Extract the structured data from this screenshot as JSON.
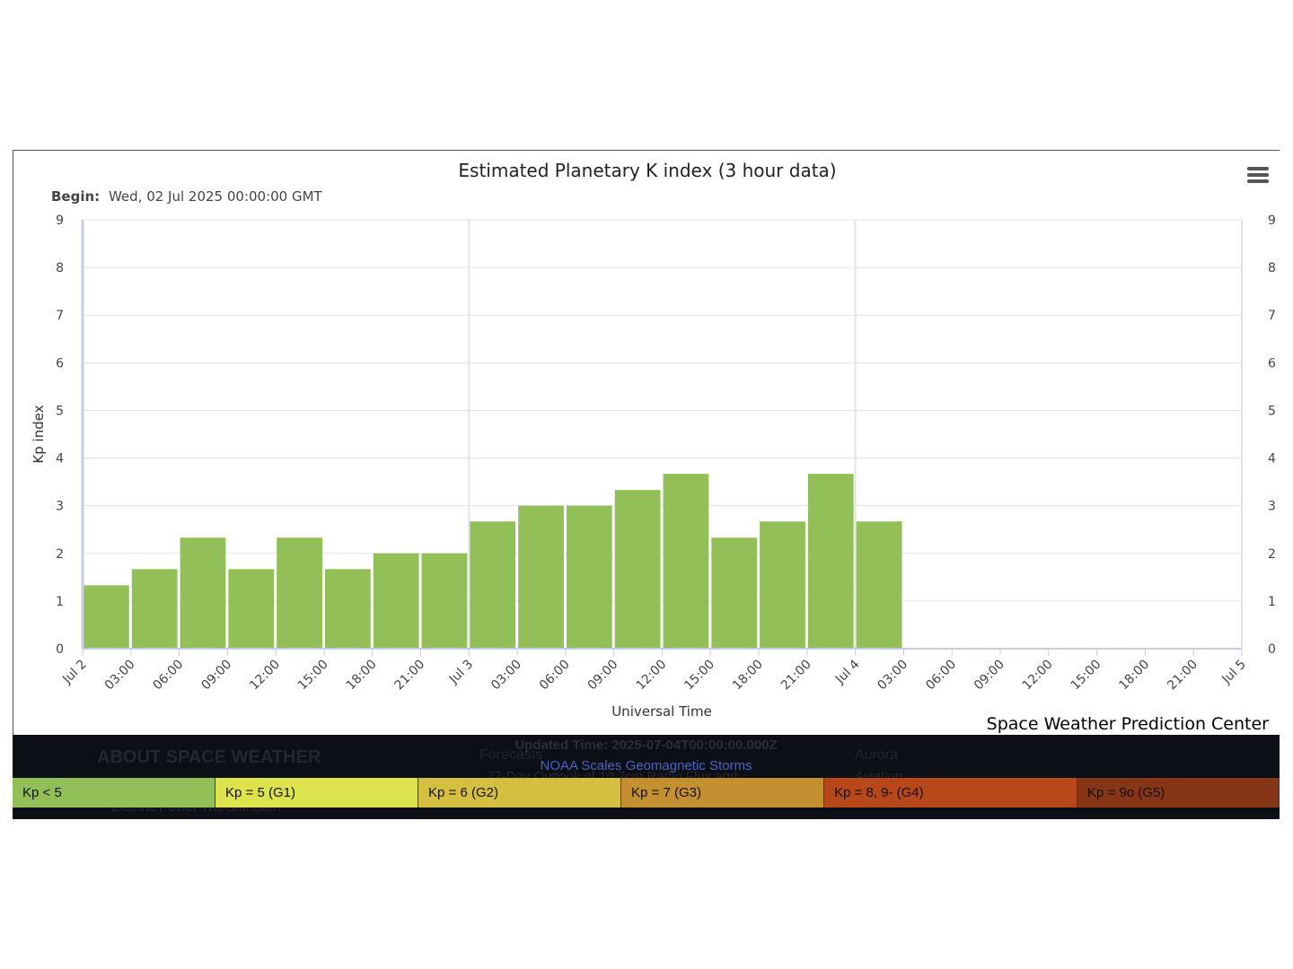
{
  "chart_data": {
    "type": "bar",
    "title": "Estimated Planetary K index (3 hour data)",
    "subtitle_label": "Begin:",
    "subtitle_value": "Wed, 02 Jul 2025 00:00:00 GMT",
    "ylabel": "Kp index",
    "xlabel": "Universal Time",
    "ylim": [
      0,
      9
    ],
    "yticks": [
      "0",
      "1",
      "2",
      "3",
      "4",
      "5",
      "6",
      "7",
      "8",
      "9"
    ],
    "xticks": [
      "Jul 2",
      "03:00",
      "06:00",
      "09:00",
      "12:00",
      "15:00",
      "18:00",
      "21:00",
      "Jul 3",
      "03:00",
      "06:00",
      "09:00",
      "12:00",
      "15:00",
      "18:00",
      "21:00",
      "Jul 4",
      "03:00",
      "06:00",
      "09:00",
      "12:00",
      "15:00",
      "18:00",
      "21:00",
      "Jul 5"
    ],
    "values": [
      1.33,
      1.67,
      2.33,
      1.67,
      2.33,
      1.67,
      2.0,
      2.0,
      2.67,
      3.0,
      3.0,
      3.33,
      3.67,
      2.33,
      2.67,
      3.67,
      2.67
    ],
    "bar_color": "#93bf58",
    "grid": true,
    "credit": "Space Weather Prediction Center"
  },
  "footer": {
    "updated_time": "Updated Time: 2025-07-04T00:00:00.000Z",
    "scales_title": "NOAA Scales Geomagnetic Storms",
    "ghost_about": "ABOUT SPACE WEATHER",
    "ghost_forecasts": "Forecasts",
    "ghost_outlook": "27-Day Outlook of 10.7cm Radio Flux and",
    "ghost_aurora": "Aurora",
    "ghost_aviation": "Aviation",
    "ghost_power": "Electric Power Transmission",
    "scales": [
      {
        "label": "Kp < 5",
        "color": "#93bf58"
      },
      {
        "label": "Kp = 5 (G1)",
        "color": "#dce34c"
      },
      {
        "label": "Kp = 6 (G2)",
        "color": "#d4bf40"
      },
      {
        "label": "Kp = 7 (G3)",
        "color": "#c48f30"
      },
      {
        "label": "Kp = 8, 9- (G4)",
        "color": "#b8471a"
      },
      {
        "label": "Kp = 9o (G5)",
        "color": "#863516"
      }
    ]
  }
}
